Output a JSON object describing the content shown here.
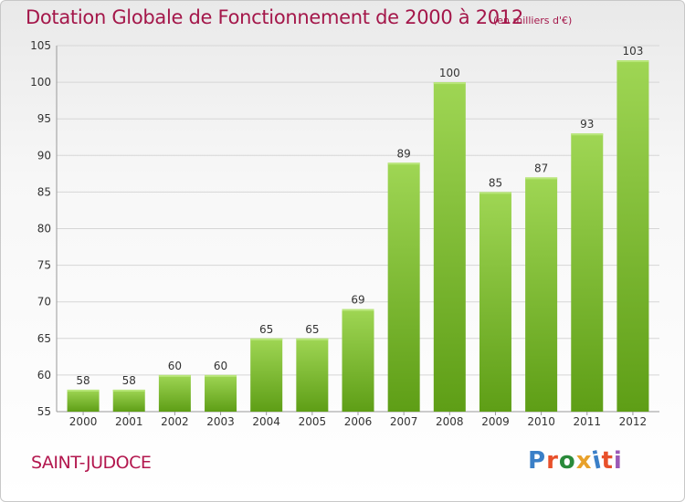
{
  "header": {
    "title": "Dotation Globale de Fonctionnement de 2000 à 2012",
    "unit": "(en milliers d'€)"
  },
  "footer": {
    "commune": "SAINT-JUDOCE",
    "logo": "Proxiti",
    "logo_colors": [
      "#3a7fc7",
      "#e8502a",
      "#2a8a3a",
      "#e8a12a",
      "#3a7fc7",
      "#e8502a",
      "#9b59b6"
    ]
  },
  "chart_data": {
    "type": "bar",
    "title": "Dotation Globale de Fonctionnement de 2000 à 2012",
    "categories": [
      "2000",
      "2001",
      "2002",
      "2003",
      "2004",
      "2005",
      "2006",
      "2007",
      "2008",
      "2009",
      "2010",
      "2011",
      "2012"
    ],
    "values": [
      58,
      58,
      60,
      60,
      65,
      65,
      69,
      89,
      100,
      85,
      87,
      93,
      103
    ],
    "ylim": [
      55,
      105
    ],
    "yticks": [
      55,
      60,
      65,
      70,
      75,
      80,
      85,
      90,
      95,
      100,
      105
    ],
    "grid": true,
    "bar_color_top": "#9fd654",
    "bar_color_bottom": "#5e9e16"
  }
}
